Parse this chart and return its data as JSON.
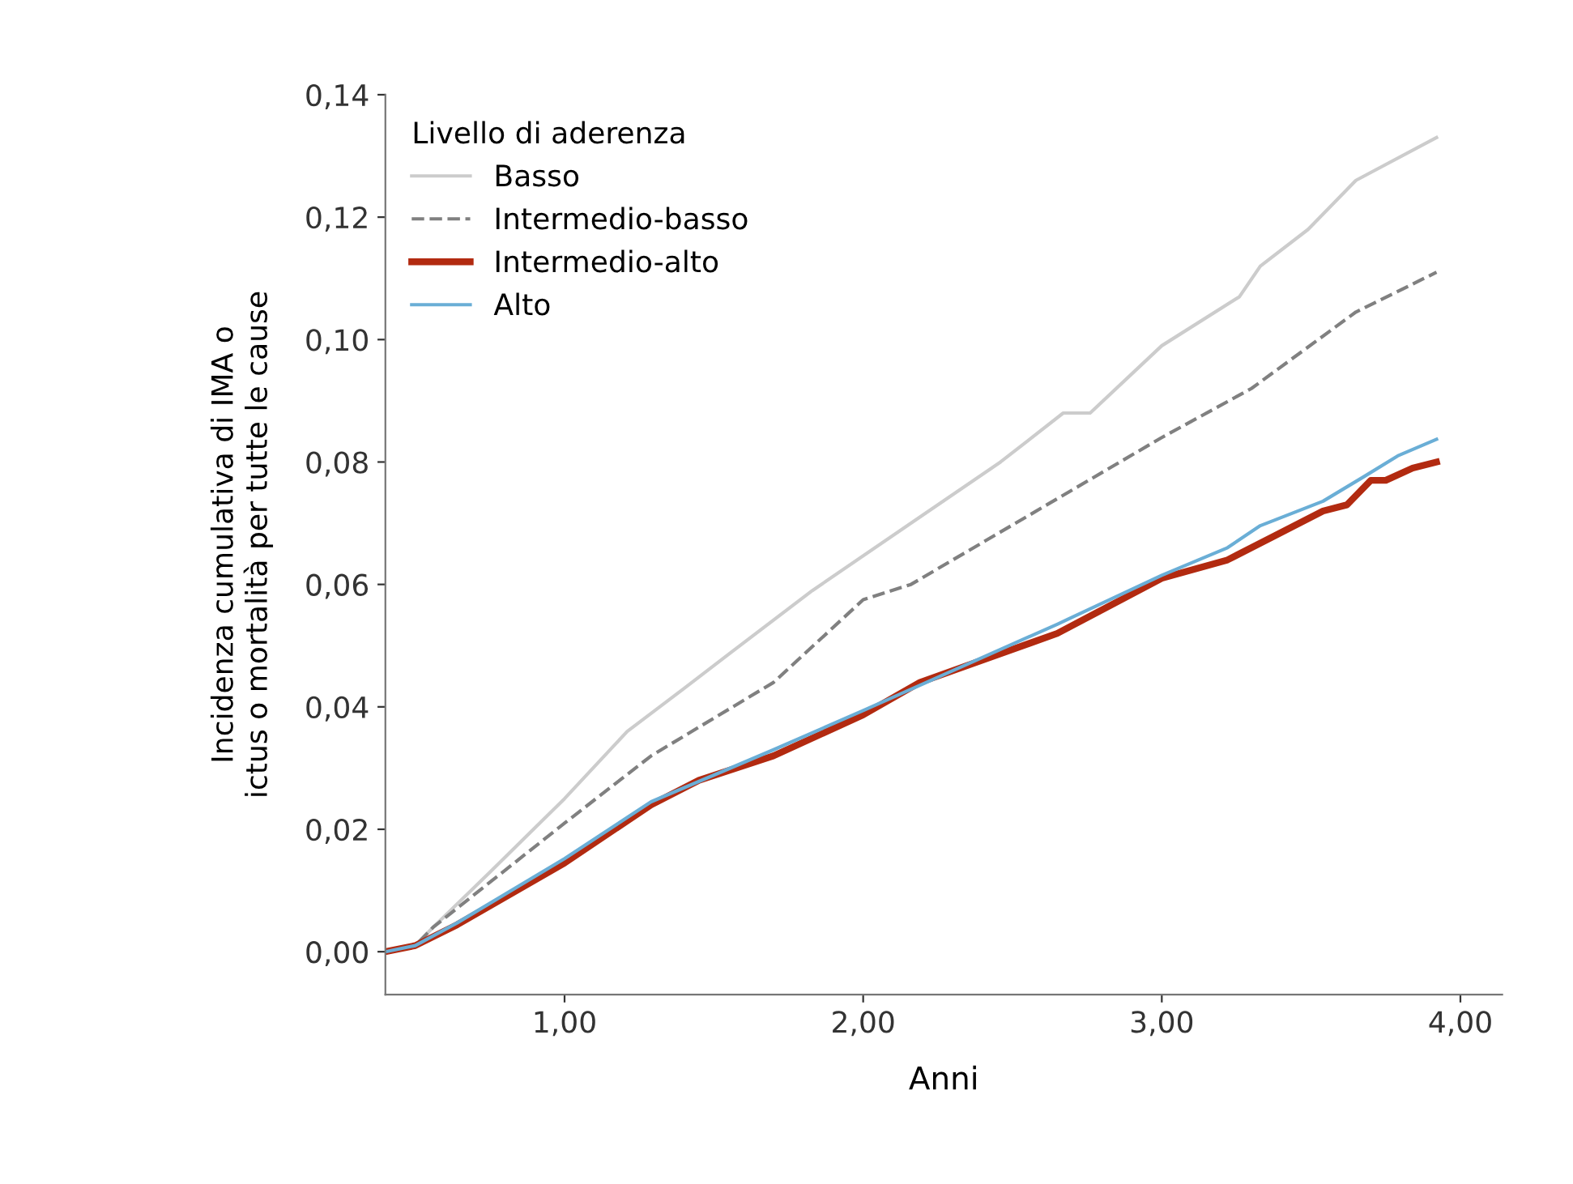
{
  "chart_data": {
    "type": "line",
    "xlabel": "Anni",
    "ylabel": "Incidenza cumulativa di IMA o\nictus o mortalità per tutte le cause",
    "legend_title": "Livello di aderenza",
    "legend": "top left",
    "grid": false,
    "xlim": [
      0.4,
      4.14
    ],
    "ylim": [
      -0.007,
      0.14
    ],
    "xticks": [
      {
        "value": 1,
        "label": "1,00"
      },
      {
        "value": 2,
        "label": "2,00"
      },
      {
        "value": 3,
        "label": "3,00"
      },
      {
        "value": 4,
        "label": "4,00"
      }
    ],
    "yticks": [
      {
        "value": 0,
        "label": "0,00"
      },
      {
        "value": 0.02,
        "label": "0,02"
      },
      {
        "value": 0.04,
        "label": "0,04"
      },
      {
        "value": 0.06,
        "label": "0,06"
      },
      {
        "value": 0.08,
        "label": "0,08"
      },
      {
        "value": 0.1,
        "label": "0,10"
      },
      {
        "value": 0.12,
        "label": "0,12"
      },
      {
        "value": 0.14,
        "label": "0,14"
      }
    ],
    "series": [
      {
        "name": "Basso",
        "color": "#cccccc",
        "line_style": "solid",
        "x": [
          0.4,
          0.5,
          0.56,
          0.75,
          1.0,
          1.21,
          1.4,
          1.56,
          1.83,
          2.16,
          2.46,
          2.67,
          2.76,
          3.0,
          3.26,
          3.33,
          3.49,
          3.65,
          3.92
        ],
        "values": [
          0,
          0.001,
          0.004,
          0.013,
          0.025,
          0.036,
          0.043,
          0.049,
          0.059,
          0.07,
          0.08,
          0.088,
          0.088,
          0.099,
          0.107,
          0.112,
          0.118,
          0.126,
          0.133
        ]
      },
      {
        "name": "Intermedio-basso",
        "color": "#808080",
        "line_style": "dashed",
        "x": [
          0.4,
          0.5,
          0.56,
          1.0,
          1.29,
          1.7,
          2.0,
          2.16,
          2.65,
          3.0,
          3.3,
          3.65,
          3.92
        ],
        "values": [
          0,
          0.001,
          0.004,
          0.021,
          0.032,
          0.044,
          0.0575,
          0.06,
          0.074,
          0.084,
          0.092,
          0.1045,
          0.111
        ]
      },
      {
        "name": "Intermedio-alto",
        "color": "#b22a10",
        "line_style": "solid",
        "x": [
          0.4,
          0.5,
          0.64,
          1.0,
          1.29,
          1.45,
          1.7,
          2.0,
          2.19,
          2.65,
          3.0,
          3.22,
          3.38,
          3.54,
          3.62,
          3.7,
          3.75,
          3.84,
          3.92
        ],
        "values": [
          0,
          0.001,
          0.0044,
          0.0145,
          0.024,
          0.028,
          0.032,
          0.0387,
          0.044,
          0.052,
          0.061,
          0.064,
          0.068,
          0.072,
          0.073,
          0.077,
          0.077,
          0.079,
          0.08
        ]
      },
      {
        "name": "Alto",
        "color": "#6aaed6",
        "line_style": "solid",
        "x": [
          0.4,
          0.5,
          0.64,
          1.0,
          1.29,
          1.7,
          2.0,
          2.65,
          3.0,
          3.22,
          3.33,
          3.54,
          3.68,
          3.79,
          3.92
        ],
        "values": [
          0,
          0.001,
          0.0047,
          0.0152,
          0.0245,
          0.033,
          0.0394,
          0.0535,
          0.0615,
          0.066,
          0.0696,
          0.0736,
          0.0777,
          0.081,
          0.0837
        ]
      }
    ]
  }
}
